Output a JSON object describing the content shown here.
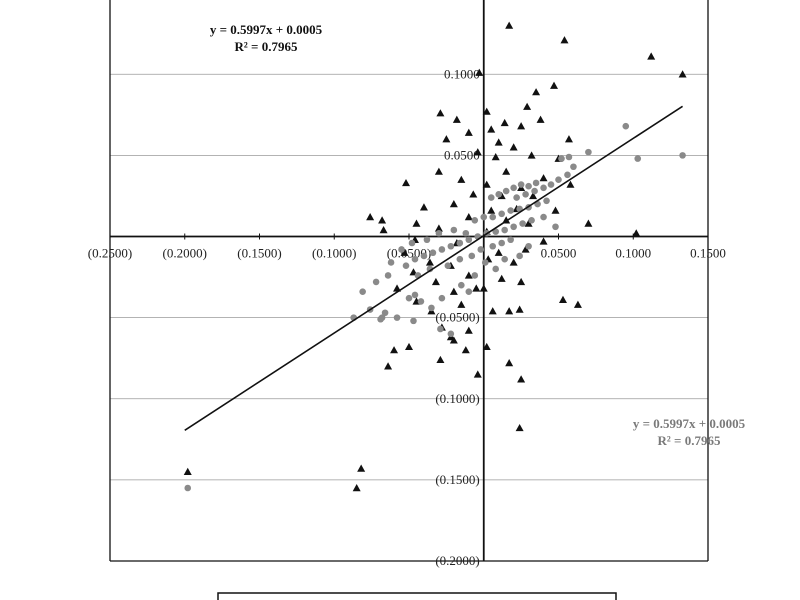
{
  "chart_data": {
    "type": "scatter",
    "x_tick_labels": [
      "(0.2500)",
      "(0.2000)",
      "(0.1500)",
      "(0.1000)",
      "(0.0500)",
      "0.0500",
      "0.1000",
      "0.1500"
    ],
    "x_tick_values": [
      -0.25,
      -0.2,
      -0.15,
      -0.1,
      -0.05,
      0.05,
      0.1,
      0.15
    ],
    "y_tick_labels": [
      "0.1000",
      "0.0500",
      "(0.0500)",
      "(0.1000)",
      "(0.1500)",
      "(0.2000)"
    ],
    "y_tick_values": [
      0.1,
      0.05,
      -0.05,
      -0.1,
      -0.15,
      -0.2
    ],
    "xlim": [
      -0.25,
      0.15
    ],
    "ylim": [
      -0.2,
      0.147
    ],
    "grid": "horizontal",
    "trendline": {
      "slope": 0.5997,
      "intercept": 0.0005,
      "x_range": [
        -0.2,
        0.133
      ]
    },
    "annotations": {
      "top": {
        "eq": "y = 0.5997x + 0.0005",
        "r2": "R² = 0.7965"
      },
      "bottom": {
        "eq": "y = 0.5997x + 0.0005",
        "r2": "R² = 0.7965"
      }
    },
    "series": [
      {
        "marker": "triangle",
        "color": "#111111",
        "points": [
          [
            0.017,
            0.13
          ],
          [
            0.054,
            0.121
          ],
          [
            0.112,
            0.111
          ],
          [
            0.133,
            0.1
          ],
          [
            -0.003,
            0.101
          ],
          [
            0.047,
            0.093
          ],
          [
            0.035,
            0.089
          ],
          [
            -0.029,
            0.076
          ],
          [
            0.029,
            0.08
          ],
          [
            0.002,
            0.077
          ],
          [
            -0.018,
            0.072
          ],
          [
            0.038,
            0.072
          ],
          [
            0.014,
            0.07
          ],
          [
            -0.01,
            0.064
          ],
          [
            0.005,
            0.066
          ],
          [
            0.025,
            0.068
          ],
          [
            0.057,
            0.06
          ],
          [
            -0.025,
            0.06
          ],
          [
            0.01,
            0.058
          ],
          [
            0.02,
            0.055
          ],
          [
            -0.004,
            0.052
          ],
          [
            0.032,
            0.05
          ],
          [
            0.05,
            0.048
          ],
          [
            0.008,
            0.049
          ],
          [
            -0.03,
            0.04
          ],
          [
            0.015,
            0.04
          ],
          [
            0.04,
            0.036
          ],
          [
            -0.015,
            0.035
          ],
          [
            -0.052,
            0.033
          ],
          [
            0.002,
            0.032
          ],
          [
            0.025,
            0.03
          ],
          [
            0.058,
            0.032
          ],
          [
            -0.007,
            0.026
          ],
          [
            0.012,
            0.025
          ],
          [
            0.033,
            0.025
          ],
          [
            -0.02,
            0.02
          ],
          [
            -0.04,
            0.018
          ],
          [
            0.005,
            0.016
          ],
          [
            0.022,
            0.017
          ],
          [
            0.048,
            0.016
          ],
          [
            -0.01,
            0.012
          ],
          [
            0.015,
            0.01
          ],
          [
            -0.076,
            0.012
          ],
          [
            -0.068,
            0.01
          ],
          [
            -0.045,
            0.008
          ],
          [
            0.03,
            0.008
          ],
          [
            0.07,
            0.008
          ],
          [
            -0.03,
            0.005
          ],
          [
            -0.067,
            0.004
          ],
          [
            0.102,
            0.002
          ],
          [
            0.002,
            0.003
          ],
          [
            -0.046,
            -0.002
          ],
          [
            -0.018,
            -0.004
          ],
          [
            0.04,
            -0.003
          ],
          [
            -0.053,
            -0.01
          ],
          [
            0.01,
            -0.01
          ],
          [
            0.028,
            -0.008
          ],
          [
            -0.036,
            -0.016
          ],
          [
            -0.022,
            -0.018
          ],
          [
            0.003,
            -0.014
          ],
          [
            0.02,
            -0.016
          ],
          [
            -0.047,
            -0.022
          ],
          [
            -0.01,
            -0.024
          ],
          [
            0.012,
            -0.026
          ],
          [
            -0.032,
            -0.028
          ],
          [
            -0.005,
            -0.032
          ],
          [
            0.025,
            -0.028
          ],
          [
            -0.058,
            -0.032
          ],
          [
            -0.02,
            -0.034
          ],
          [
            0.0,
            -0.032
          ],
          [
            -0.045,
            -0.04
          ],
          [
            -0.015,
            -0.042
          ],
          [
            0.053,
            -0.039
          ],
          [
            0.063,
            -0.042
          ],
          [
            -0.035,
            -0.046
          ],
          [
            0.006,
            -0.046
          ],
          [
            0.017,
            -0.046
          ],
          [
            0.024,
            -0.045
          ],
          [
            -0.028,
            -0.056
          ],
          [
            -0.01,
            -0.058
          ],
          [
            -0.022,
            -0.062
          ],
          [
            -0.02,
            -0.064
          ],
          [
            -0.05,
            -0.068
          ],
          [
            -0.06,
            -0.07
          ],
          [
            -0.012,
            -0.07
          ],
          [
            0.002,
            -0.068
          ],
          [
            -0.029,
            -0.076
          ],
          [
            -0.064,
            -0.08
          ],
          [
            0.017,
            -0.078
          ],
          [
            -0.004,
            -0.085
          ],
          [
            0.025,
            -0.088
          ],
          [
            0.024,
            -0.118
          ],
          [
            -0.198,
            -0.145
          ],
          [
            -0.082,
            -0.143
          ],
          [
            -0.085,
            -0.155
          ]
        ]
      },
      {
        "marker": "circle",
        "color": "#8a8a8a",
        "points": [
          [
            0.133,
            0.05
          ],
          [
            0.095,
            0.068
          ],
          [
            0.103,
            0.048
          ],
          [
            0.07,
            0.052
          ],
          [
            0.057,
            0.049
          ],
          [
            0.052,
            0.048
          ],
          [
            0.06,
            0.043
          ],
          [
            0.056,
            0.038
          ],
          [
            0.05,
            0.035
          ],
          [
            0.045,
            0.032
          ],
          [
            0.04,
            0.03
          ],
          [
            0.035,
            0.033
          ],
          [
            0.03,
            0.031
          ],
          [
            0.025,
            0.032
          ],
          [
            0.02,
            0.03
          ],
          [
            0.015,
            0.028
          ],
          [
            0.01,
            0.026
          ],
          [
            0.005,
            0.024
          ],
          [
            0.042,
            0.022
          ],
          [
            0.036,
            0.02
          ],
          [
            0.03,
            0.018
          ],
          [
            0.024,
            0.017
          ],
          [
            0.018,
            0.016
          ],
          [
            0.012,
            0.014
          ],
          [
            0.006,
            0.012
          ],
          [
            0.0,
            0.012
          ],
          [
            -0.006,
            0.01
          ],
          [
            0.04,
            0.012
          ],
          [
            0.032,
            0.01
          ],
          [
            0.026,
            0.008
          ],
          [
            0.02,
            0.006
          ],
          [
            0.014,
            0.004
          ],
          [
            0.008,
            0.003
          ],
          [
            0.002,
            0.002
          ],
          [
            -0.004,
            0.0
          ],
          [
            -0.01,
            -0.002
          ],
          [
            -0.016,
            -0.004
          ],
          [
            -0.022,
            -0.006
          ],
          [
            -0.028,
            -0.008
          ],
          [
            -0.034,
            -0.01
          ],
          [
            -0.04,
            -0.012
          ],
          [
            -0.046,
            -0.014
          ],
          [
            0.018,
            -0.002
          ],
          [
            0.012,
            -0.004
          ],
          [
            0.006,
            -0.006
          ],
          [
            -0.002,
            -0.008
          ],
          [
            -0.012,
            0.002
          ],
          [
            -0.02,
            0.004
          ],
          [
            -0.03,
            0.002
          ],
          [
            -0.038,
            -0.002
          ],
          [
            -0.048,
            -0.004
          ],
          [
            -0.055,
            -0.008
          ],
          [
            -0.062,
            -0.016
          ],
          [
            -0.064,
            -0.024
          ],
          [
            -0.052,
            -0.018
          ],
          [
            -0.044,
            -0.024
          ],
          [
            -0.036,
            -0.02
          ],
          [
            -0.024,
            -0.018
          ],
          [
            -0.016,
            -0.014
          ],
          [
            -0.008,
            -0.012
          ],
          [
            0.001,
            -0.016
          ],
          [
            0.014,
            -0.014
          ],
          [
            0.024,
            -0.012
          ],
          [
            -0.046,
            -0.036
          ],
          [
            -0.042,
            -0.04
          ],
          [
            -0.05,
            -0.038
          ],
          [
            -0.028,
            -0.038
          ],
          [
            -0.072,
            -0.028
          ],
          [
            -0.081,
            -0.034
          ],
          [
            -0.066,
            -0.047
          ],
          [
            -0.069,
            -0.051
          ],
          [
            -0.076,
            -0.045
          ],
          [
            -0.087,
            -0.05
          ],
          [
            -0.068,
            -0.05
          ],
          [
            -0.058,
            -0.05
          ],
          [
            -0.047,
            -0.052
          ],
          [
            -0.029,
            -0.057
          ],
          [
            -0.022,
            -0.06
          ],
          [
            -0.035,
            -0.044
          ],
          [
            -0.015,
            -0.03
          ],
          [
            -0.006,
            -0.024
          ],
          [
            0.008,
            -0.02
          ],
          [
            0.03,
            -0.006
          ],
          [
            0.048,
            0.006
          ],
          [
            0.022,
            0.024
          ],
          [
            0.028,
            0.026
          ],
          [
            0.034,
            0.028
          ],
          [
            -0.198,
            -0.155
          ],
          [
            -0.01,
            -0.034
          ]
        ]
      }
    ]
  }
}
